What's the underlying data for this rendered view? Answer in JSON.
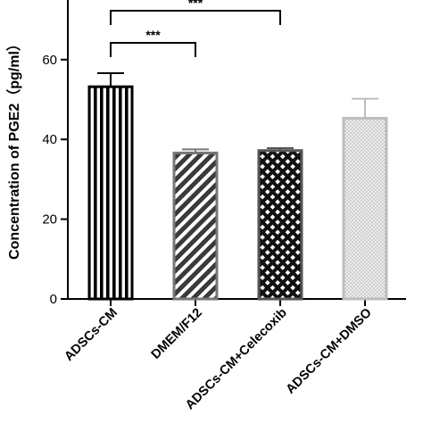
{
  "chart_data": {
    "type": "bar",
    "ylabel": "Concentration of PGE2（pg/ml）",
    "xlabel": "",
    "ylim": [
      0,
      70
    ],
    "yticks": [
      0,
      20,
      40,
      60
    ],
    "grid": false,
    "categories": [
      "ADSCs-CM",
      "DMEM/F12",
      "ADSCs-CM+Celecoxib",
      "ADSCs-CM+DMSO"
    ],
    "values": [
      53.2,
      36.6,
      37.2,
      45.3
    ],
    "errors": [
      3.4,
      0.9,
      0.6,
      4.9
    ],
    "bar_styles": [
      {
        "fill": "#ffffff",
        "pattern": "vertical-stripes",
        "pattern_color": "#000000",
        "edge": "#000000"
      },
      {
        "fill": "#ffffff",
        "pattern": "diagonal-stripes",
        "pattern_color": "#3a3a3a",
        "edge": "#777777"
      },
      {
        "fill": "#ffffff",
        "pattern": "crosshatch",
        "pattern_color": "#111111",
        "edge": "#555555"
      },
      {
        "fill": "#ffffff",
        "pattern": "dots",
        "pattern_color": "#bdbdbd",
        "edge": "#bdbdbd"
      }
    ],
    "significance": [
      {
        "from": 0,
        "to": 1,
        "label": "***"
      },
      {
        "from": 0,
        "to": 2,
        "label": "***"
      }
    ]
  }
}
